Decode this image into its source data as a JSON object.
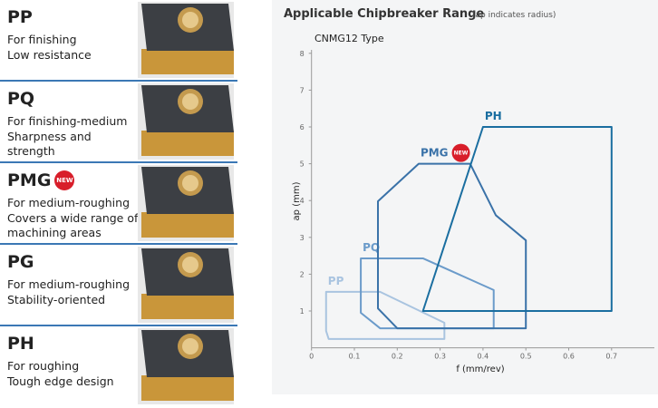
{
  "items": [
    {
      "name": "PP",
      "lines": [
        "For finishing",
        "Low resistance"
      ]
    },
    {
      "name": "PQ",
      "lines": [
        "For finishing-medium",
        "Sharpness and",
        "strength"
      ]
    },
    {
      "name": "PMG",
      "badge": "NEW",
      "lines": [
        "For medium-roughing",
        "Covers a wide range of",
        "machining areas"
      ]
    },
    {
      "name": "PG",
      "lines": [
        "For medium-roughing",
        "Stability-oriented"
      ]
    },
    {
      "name": "PH",
      "lines": [
        "For roughing",
        "Tough edge design"
      ]
    }
  ],
  "chart_data": {
    "type": "region",
    "title": "Applicable Chipbreaker Range",
    "subtitle": "(ap indicates radius)",
    "annotation": "CNMG12 Type",
    "x_label": "f (mm/rev)",
    "y_label": "ap (mm)",
    "xlim": [
      0,
      0.8
    ],
    "ylim": [
      0,
      8
    ],
    "xticks": [
      0,
      0.1,
      0.2,
      0.3,
      0.4,
      0.5,
      0.6,
      0.7
    ],
    "yticks": [
      1,
      2,
      3,
      4,
      5,
      6,
      7,
      8
    ],
    "series": [
      {
        "name": "PP",
        "color": "#a9c4e0",
        "x": [
          0.034,
          0.16,
          0.31,
          0.31,
          0.04,
          0.034
        ],
        "values": [
          1.52,
          1.52,
          0.68,
          0.24,
          0.24,
          0.46
        ]
      },
      {
        "name": "PQ",
        "color": "#6b9bca",
        "x": [
          0.115,
          0.26,
          0.425,
          0.425,
          0.16,
          0.115
        ],
        "values": [
          2.43,
          2.43,
          1.57,
          0.53,
          0.53,
          0.95
        ]
      },
      {
        "name": "PMG",
        "badge": "NEW",
        "color": "#3a72a8",
        "x": [
          0.155,
          0.25,
          0.37,
          0.43,
          0.5,
          0.5,
          0.2,
          0.155
        ],
        "values": [
          3.98,
          5.0,
          5.0,
          3.6,
          2.92,
          0.53,
          0.53,
          1.07
        ]
      },
      {
        "name": "PH",
        "color": "#1a6ea0",
        "x": [
          0.26,
          0.4,
          0.7,
          0.7
        ],
        "values": [
          1.0,
          6.0,
          6.0,
          1.0
        ]
      }
    ]
  }
}
